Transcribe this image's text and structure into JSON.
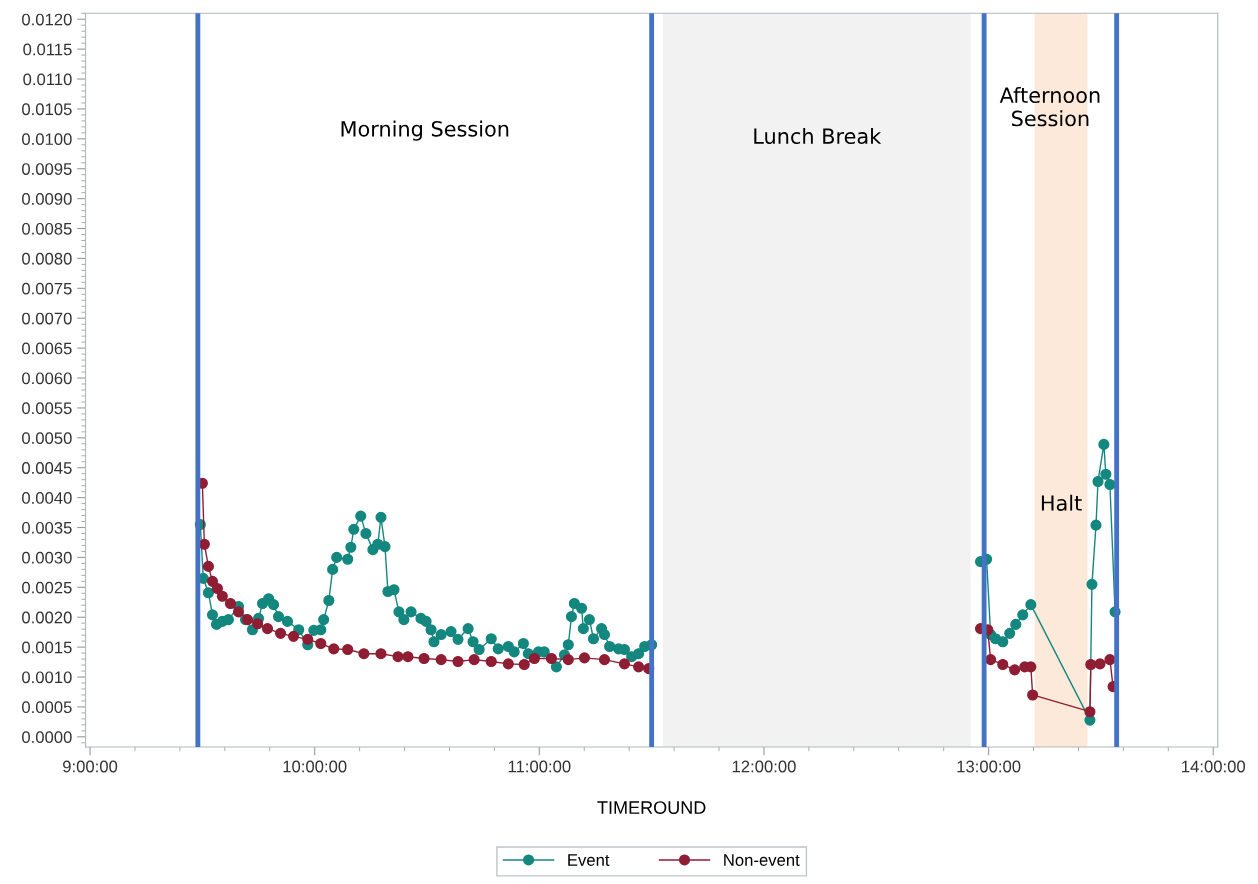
{
  "chart_data": {
    "type": "line",
    "xlabel": "TIMEROUND",
    "xlim": [
      8.98,
      14.02
    ],
    "ylim": [
      -0.00017,
      0.0121
    ],
    "xticks": [
      {
        "value": 9,
        "label": "9:00:00"
      },
      {
        "value": 10,
        "label": "10:00:00"
      },
      {
        "value": 11,
        "label": "11:00:00"
      },
      {
        "value": 12,
        "label": "12:00:00"
      },
      {
        "value": 13,
        "label": "13:00:00"
      },
      {
        "value": 14,
        "label": "14:00:00"
      }
    ],
    "yticks": [
      {
        "value": 0,
        "label": "0.0000"
      },
      {
        "value": 0.0005,
        "label": "0.0005"
      },
      {
        "value": 0.001,
        "label": "0.0010"
      },
      {
        "value": 0.0015,
        "label": "0.0015"
      },
      {
        "value": 0.002,
        "label": "0.0020"
      },
      {
        "value": 0.0025,
        "label": "0.0025"
      },
      {
        "value": 0.003,
        "label": "0.0030"
      },
      {
        "value": 0.0035,
        "label": "0.0035"
      },
      {
        "value": 0.004,
        "label": "0.0040"
      },
      {
        "value": 0.0045,
        "label": "0.0045"
      },
      {
        "value": 0.005,
        "label": "0.0050"
      },
      {
        "value": 0.0055,
        "label": "0.0055"
      },
      {
        "value": 0.006,
        "label": "0.0060"
      },
      {
        "value": 0.0065,
        "label": "0.0065"
      },
      {
        "value": 0.007,
        "label": "0.0070"
      },
      {
        "value": 0.0075,
        "label": "0.0075"
      },
      {
        "value": 0.008,
        "label": "0.0080"
      },
      {
        "value": 0.0085,
        "label": "0.0085"
      },
      {
        "value": 0.009,
        "label": "0.0090"
      },
      {
        "value": 0.0095,
        "label": "0.0095"
      },
      {
        "value": 0.01,
        "label": "0.0100"
      },
      {
        "value": 0.0105,
        "label": "0.0105"
      },
      {
        "value": 0.011,
        "label": "0.0110"
      },
      {
        "value": 0.0115,
        "label": "0.0115"
      },
      {
        "value": 0.012,
        "label": "0.0120"
      }
    ],
    "grid": false,
    "legend": "bottom",
    "marker": "circle",
    "line_style": "solid",
    "series": [
      {
        "name": "Event",
        "color": "#14877f",
        "x": [
          9.491,
          9.504,
          9.527,
          9.545,
          9.563,
          9.589,
          9.616,
          9.661,
          9.692,
          9.723,
          9.75,
          9.768,
          9.795,
          9.817,
          9.839,
          9.879,
          9.929,
          9.969,
          9.996,
          10.027,
          10.04,
          10.063,
          10.08,
          10.098,
          10.147,
          10.161,
          10.174,
          10.205,
          10.228,
          10.259,
          10.281,
          10.295,
          10.313,
          10.326,
          10.353,
          10.375,
          10.397,
          10.429,
          10.473,
          10.496,
          10.518,
          10.531,
          10.563,
          10.607,
          10.638,
          10.683,
          10.705,
          10.732,
          10.786,
          10.817,
          10.862,
          10.888,
          10.929,
          10.951,
          10.996,
          11.022,
          11.076,
          11.112,
          11.129,
          11.143,
          11.156,
          11.188,
          11.196,
          11.223,
          11.241,
          11.277,
          11.29,
          11.313,
          11.353,
          11.379,
          11.411,
          11.442,
          11.469,
          11.5,
          12.25,
          12.964,
          12.991,
          13.009,
          13.031,
          13.063,
          13.094,
          13.121,
          13.152,
          13.188,
          13.451,
          13.46,
          13.478,
          13.487,
          13.513,
          13.522,
          13.54,
          13.563
        ],
        "values": [
          0.00355,
          0.00265,
          0.00241,
          0.00204,
          0.00188,
          0.00193,
          0.00196,
          0.00218,
          0.00196,
          0.00179,
          0.00198,
          0.00223,
          0.00231,
          0.00221,
          0.00201,
          0.00193,
          0.00179,
          0.00154,
          0.00178,
          0.00179,
          0.00196,
          0.00228,
          0.0028,
          0.003,
          0.00297,
          0.00317,
          0.00347,
          0.00369,
          0.0034,
          0.00313,
          0.00322,
          0.00367,
          0.00318,
          0.00243,
          0.00246,
          0.00209,
          0.00196,
          0.00209,
          0.00198,
          0.00193,
          0.00179,
          0.00159,
          0.00171,
          0.00176,
          0.00163,
          0.00181,
          0.00159,
          0.00146,
          0.00164,
          0.00147,
          0.00151,
          0.00142,
          0.00156,
          0.00139,
          0.00142,
          0.00142,
          0.00117,
          0.00137,
          0.00154,
          0.00201,
          0.00223,
          0.00215,
          0.00181,
          0.00196,
          0.00164,
          0.00181,
          0.00171,
          0.00151,
          0.00147,
          0.00146,
          0.00134,
          0.00139,
          0.00151,
          0.00154,
          null,
          0.00293,
          0.00297,
          0.00171,
          0.00164,
          0.00159,
          0.00173,
          0.00188,
          0.00204,
          0.00221,
          0.00028,
          0.00255,
          0.00354,
          0.00427,
          0.00489,
          0.00439,
          0.00422,
          0.00209
        ]
      },
      {
        "name": "Non-event",
        "color": "#8f1d33",
        "x": [
          9.5,
          9.509,
          9.527,
          9.545,
          9.567,
          9.589,
          9.625,
          9.661,
          9.701,
          9.746,
          9.79,
          9.848,
          9.906,
          9.969,
          10.027,
          10.085,
          10.147,
          10.219,
          10.295,
          10.371,
          10.415,
          10.487,
          10.563,
          10.638,
          10.71,
          10.786,
          10.862,
          10.933,
          10.978,
          11.054,
          11.129,
          11.201,
          11.29,
          11.379,
          11.442,
          11.487,
          12.25,
          12.964,
          12.996,
          13.009,
          13.063,
          13.116,
          13.161,
          13.188,
          13.196,
          13.451,
          13.455,
          13.496,
          13.54,
          13.554
        ],
        "values": [
          0.00424,
          0.00322,
          0.00285,
          0.0026,
          0.00248,
          0.00235,
          0.00223,
          0.00209,
          0.00196,
          0.00189,
          0.00181,
          0.00173,
          0.00168,
          0.00163,
          0.00156,
          0.00147,
          0.00146,
          0.00139,
          0.00139,
          0.00134,
          0.00134,
          0.00131,
          0.00129,
          0.00126,
          0.00129,
          0.00126,
          0.00122,
          0.00121,
          0.00131,
          0.00131,
          0.00129,
          0.00132,
          0.00129,
          0.00122,
          0.00117,
          0.00114,
          null,
          0.00181,
          0.00179,
          0.00129,
          0.00121,
          0.00112,
          0.00117,
          0.00117,
          0.0007,
          0.00042,
          0.00121,
          0.00122,
          0.00129,
          0.00084
        ]
      }
    ],
    "ref_lines": [
      {
        "axis": "x",
        "value": 9.48,
        "color": "#4472c4"
      },
      {
        "axis": "x",
        "value": 11.5,
        "color": "#4472c4"
      },
      {
        "axis": "x",
        "value": 12.98,
        "color": "#4472c4"
      },
      {
        "axis": "x",
        "value": 13.57,
        "color": "#4472c4"
      }
    ],
    "annotations": [
      "Morning Session",
      "Afternoon\nSession"
    ],
    "bands": [
      {
        "axis": "x",
        "from": 11.55,
        "to": 12.92,
        "label": "Lunch Break",
        "color": "#f2f2f2"
      },
      {
        "axis": "x",
        "from": 13.205,
        "to": 13.44,
        "label": "Halt",
        "color": "#fde9d9"
      }
    ]
  }
}
